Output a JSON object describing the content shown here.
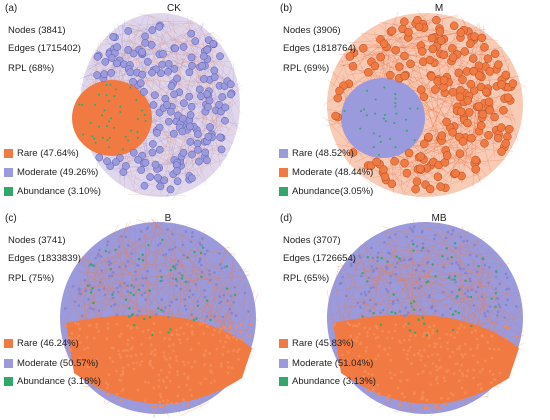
{
  "colors": {
    "rare": "#f07a42",
    "moderate": "#9a9adc",
    "abundance": "#2fa86a"
  },
  "panels": [
    {
      "tag": "(a)",
      "title": "CK",
      "nodes": "Nodes (3841)",
      "edges": "Edges (1715402)",
      "rpl": "RPL (68%)",
      "legend": [
        {
          "key": "rare",
          "label": "Rare (47.64%)"
        },
        {
          "key": "moderate",
          "label": "Moderate (49.26%)"
        },
        {
          "key": "abundance",
          "label": "Abundance (3.10%)"
        }
      ]
    },
    {
      "tag": "(b)",
      "title": "M",
      "nodes": "Nodes (3906)",
      "edges": "Edges (1818764)",
      "rpl": "RPL (69%)",
      "legend": [
        {
          "key": "moderate",
          "label": "Rare (48.52%)"
        },
        {
          "key": "rare",
          "label": "Moderate (48.44%)"
        },
        {
          "key": "abundance",
          "label": "Abundance(3.05%)"
        }
      ]
    },
    {
      "tag": "(c)",
      "title": "B",
      "nodes": "Nodes (3741)",
      "edges": "Edges (1833839)",
      "rpl": "RPL (75%)",
      "legend": [
        {
          "key": "rare",
          "label": "Rare (46.24%)"
        },
        {
          "key": "moderate",
          "label": "Moderate (50.57%)"
        },
        {
          "key": "abundance",
          "label": "Abundance (3.18%)"
        }
      ]
    },
    {
      "tag": "(d)",
      "title": "MB",
      "nodes": "Nodes (3707)",
      "edges": "Edges (1726654)",
      "rpl": "RPL (65%)",
      "legend": [
        {
          "key": "rare",
          "label": "Rare (45.83%)"
        },
        {
          "key": "moderate",
          "label": "Moderate (51.04%)"
        },
        {
          "key": "abundance",
          "label": "Abundance (3.13%)"
        }
      ]
    }
  ]
}
